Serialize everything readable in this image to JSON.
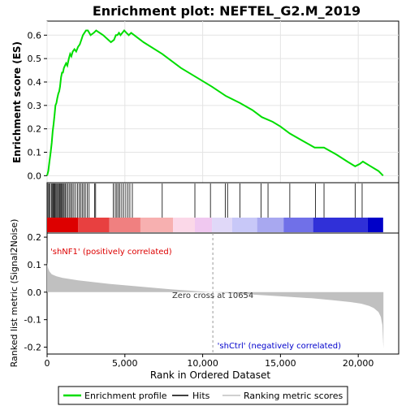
{
  "chart_data": {
    "type": "line",
    "title": "Enrichment plot: NEFTEL_G2.M_2019",
    "xlabel": "Rank in Ordered Dataset",
    "es_panel": {
      "ylabel": "Enrichment score (ES)",
      "ylim": [
        -0.03,
        0.66
      ],
      "yticks": [
        0.0,
        0.1,
        0.2,
        0.3,
        0.4,
        0.5,
        0.6
      ],
      "ytick_labels": [
        "0.0",
        "0.1",
        "0.2",
        "0.3",
        "0.4",
        "0.5",
        "0.6"
      ],
      "series": [
        {
          "name": "Enrichment profile",
          "color": "#00dd00",
          "x": [
            0,
            80,
            150,
            230,
            300,
            360,
            420,
            480,
            540,
            600,
            650,
            720,
            780,
            830,
            900,
            960,
            1020,
            1080,
            1150,
            1220,
            1300,
            1400,
            1480,
            1560,
            1650,
            1760,
            1870,
            1990,
            2100,
            2200,
            2300,
            2400,
            2500,
            2620,
            2800,
            3000,
            3150,
            3600,
            4100,
            4300,
            4420,
            4520,
            4620,
            4720,
            4840,
            4960,
            5100,
            5250,
            5400,
            5600,
            6200,
            7400,
            8600,
            9600,
            10600,
            11500,
            12400,
            13200,
            13800,
            14500,
            15000,
            15600,
            16400,
            17200,
            17800,
            18600,
            19300,
            19800,
            20100,
            20300,
            20800,
            21300,
            21600
          ],
          "y": [
            0.0,
            0.02,
            0.06,
            0.1,
            0.14,
            0.19,
            0.22,
            0.26,
            0.3,
            0.31,
            0.33,
            0.35,
            0.36,
            0.38,
            0.42,
            0.44,
            0.44,
            0.46,
            0.47,
            0.48,
            0.47,
            0.5,
            0.52,
            0.51,
            0.53,
            0.54,
            0.53,
            0.55,
            0.56,
            0.58,
            0.6,
            0.61,
            0.62,
            0.62,
            0.6,
            0.61,
            0.62,
            0.6,
            0.57,
            0.58,
            0.6,
            0.6,
            0.61,
            0.6,
            0.61,
            0.62,
            0.61,
            0.6,
            0.61,
            0.6,
            0.57,
            0.52,
            0.46,
            0.42,
            0.38,
            0.34,
            0.31,
            0.28,
            0.25,
            0.23,
            0.21,
            0.18,
            0.15,
            0.12,
            0.12,
            0.09,
            0.06,
            0.04,
            0.05,
            0.06,
            0.04,
            0.02,
            0.0
          ]
        }
      ]
    },
    "hits_panel": {
      "name": "Hits",
      "hit_ranks": [
        60,
        130,
        200,
        280,
        350,
        400,
        450,
        500,
        560,
        620,
        680,
        740,
        800,
        850,
        920,
        980,
        1040,
        1100,
        1180,
        1260,
        1350,
        1450,
        1530,
        1620,
        1720,
        1830,
        1950,
        2060,
        2160,
        2260,
        2360,
        2460,
        2580,
        2700,
        3050,
        3120,
        4250,
        4380,
        4480,
        4580,
        4680,
        4800,
        4920,
        5060,
        5200,
        5320,
        5480,
        7400,
        9500,
        10500,
        11450,
        11600,
        12400,
        13750,
        14200,
        15600,
        17250,
        17800,
        19800,
        20250
      ]
    },
    "color_bar": {
      "colors": [
        "#dd0000",
        "#e84040",
        "#f08080",
        "#f7b0b0",
        "#fbd8e8",
        "#f0c8f0",
        "#e0d8f8",
        "#c8c8f8",
        "#a8a8f0",
        "#7070e8",
        "#3030d8",
        "#0000c8"
      ],
      "stops": [
        0,
        2000,
        4000,
        6000,
        8100,
        9500,
        10600,
        11900,
        13500,
        15200,
        17100,
        20600,
        21600
      ]
    },
    "ranked_panel": {
      "ylabel": "Ranked list metric (Signal2Noise)",
      "ylim": [
        -0.225,
        0.215
      ],
      "yticks": [
        -0.2,
        -0.1,
        0.0,
        0.1,
        0.2
      ],
      "ytick_labels": [
        "-0.2",
        "-0.1",
        "0.0",
        "0.1",
        "0.2"
      ],
      "zero_cross_rank": 10654,
      "zero_cross_label": "Zero cross at 10654",
      "positive_label": "'shNF1' (positively correlated)",
      "negative_label": "'shCtrl' (negatively correlated)",
      "x": [
        0,
        30,
        80,
        150,
        300,
        600,
        1000,
        2000,
        4000,
        6000,
        8000,
        10654,
        13000,
        15000,
        17000,
        18500,
        19500,
        20200,
        20700,
        21000,
        21300,
        21450,
        21550,
        21620
      ],
      "y": [
        0.11,
        0.095,
        0.085,
        0.075,
        0.065,
        0.058,
        0.052,
        0.043,
        0.03,
        0.02,
        0.01,
        0.0,
        -0.008,
        -0.015,
        -0.022,
        -0.03,
        -0.036,
        -0.042,
        -0.05,
        -0.058,
        -0.072,
        -0.09,
        -0.12,
        -0.205
      ]
    },
    "xlim": [
      0,
      22600
    ],
    "xticks": [
      0,
      5000,
      10000,
      15000,
      20000
    ],
    "xtick_labels": [
      "0",
      "5,000",
      "10,000",
      "15,000",
      "20,000"
    ],
    "legend": {
      "placement": "bottom",
      "entries": [
        {
          "name": "Enrichment profile",
          "color": "#00dd00"
        },
        {
          "name": "Hits",
          "color": "#000000"
        },
        {
          "name": "Ranking metric scores",
          "color": "#c0c0c0"
        }
      ]
    }
  }
}
